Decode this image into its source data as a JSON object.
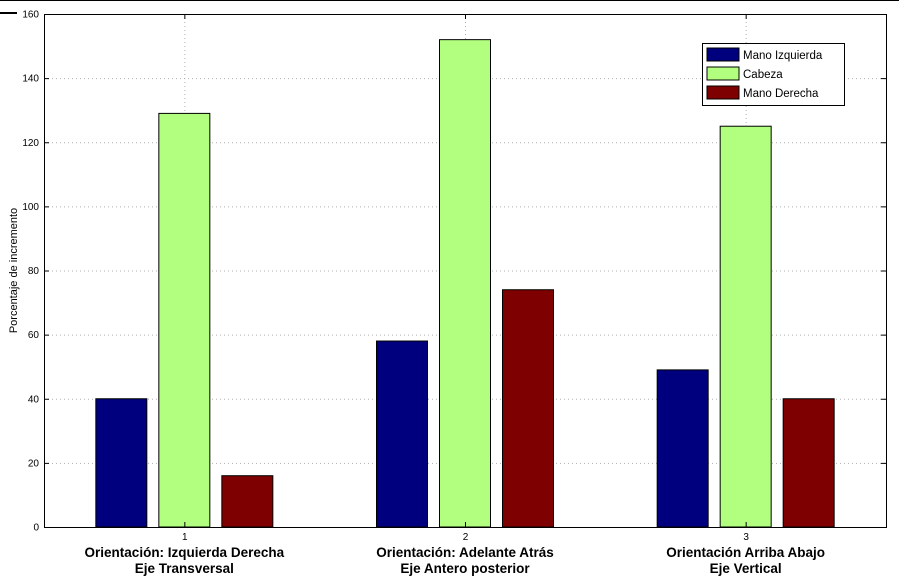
{
  "chart_data": {
    "type": "bar",
    "categories": [
      "1",
      "2",
      "3"
    ],
    "category_labels": [
      [
        "Orientación: Izquierda Derecha",
        "Eje Transversal"
      ],
      [
        "Orientación: Adelante Atrás",
        "Eje Antero posterior"
      ],
      [
        "Orientación Arriba Abajo",
        "Eje Vertical"
      ]
    ],
    "series": [
      {
        "name": "Mano Izquierda",
        "color": "#00007f",
        "values": [
          40,
          58,
          49
        ]
      },
      {
        "name": "Cabeza",
        "color": "#b2ff7f",
        "values": [
          129,
          152,
          125
        ]
      },
      {
        "name": "Mano Derecha",
        "color": "#7f0000",
        "values": [
          16,
          74,
          40
        ]
      }
    ],
    "ylabel": "Porcentaje de incremento",
    "xlabel": "",
    "ylim": [
      0,
      160
    ],
    "yticks": [
      0,
      20,
      40,
      60,
      80,
      100,
      120,
      140,
      160
    ],
    "grid": true,
    "legend_position": "top-right"
  }
}
